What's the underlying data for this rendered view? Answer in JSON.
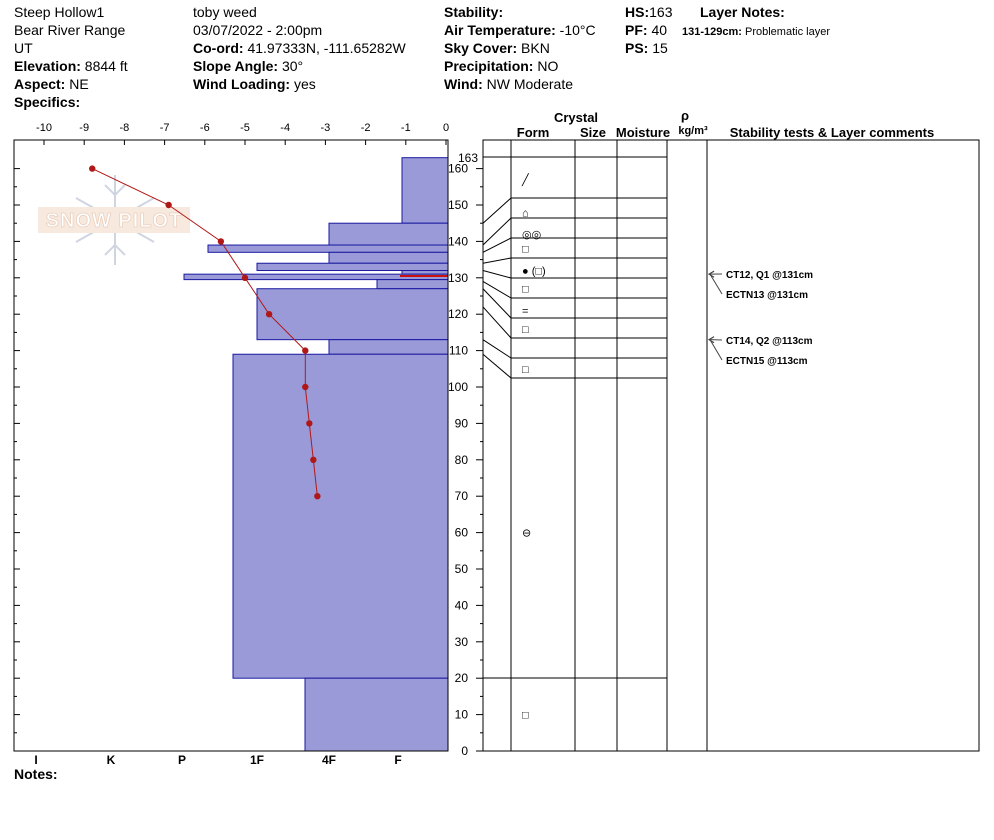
{
  "header": {
    "col1": [
      "Steep Hollow1",
      "Bear River Range",
      "UT"
    ],
    "elevation_label": "Elevation:",
    "elevation": "8844 ft",
    "aspect_label": "Aspect:",
    "aspect": "NE",
    "specifics_label": "Specifics:",
    "observer": "toby weed",
    "datetime": "03/07/2022 - 2:00pm",
    "coord_label": "Co-ord:",
    "coord": "41.97333N, -111.65282W",
    "slope_label": "Slope Angle:",
    "slope": "30°",
    "wind_loading_label": "Wind Loading:",
    "wind_loading": "yes",
    "stability_label": "Stability:",
    "stability": "",
    "air_temp_label": "Air Temperature:",
    "air_temp": "-10°C",
    "sky_label": "Sky Cover:",
    "sky": "BKN",
    "precip_label": "Precipitation:",
    "precip": "NO",
    "wind_label": "Wind:",
    "wind": "NW Moderate",
    "hs_label": "HS:",
    "hs": "163",
    "pf_label": "PF:",
    "pf": "40",
    "ps_label": "PS:",
    "ps": "15",
    "layer_notes_label": "Layer Notes:",
    "layer_note_range": "131-129cm:",
    "layer_note_text": "Problematic layer",
    "notes_label": "Notes:"
  },
  "watermark": "SNOW PILOT",
  "table_headers": {
    "crystal": "Crystal",
    "form": "Form",
    "size": "Size",
    "moisture": "Moisture",
    "rho": "ρ",
    "density_unit": "kg/m³",
    "stability": "Stability tests & Layer comments"
  },
  "chart_data": {
    "type": "snow-profile",
    "temp_axis": {
      "ticks": [
        "-10",
        "-9",
        "-8",
        "-7",
        "-6",
        "-5",
        "-4",
        "-3",
        "-2",
        "-1",
        "0"
      ],
      "range": [
        -10,
        0
      ]
    },
    "hardness_axis": {
      "labels": [
        "I",
        "K",
        "P",
        "1F",
        "4F",
        "F"
      ]
    },
    "height_axis": {
      "ticks": [
        "0",
        "10",
        "20",
        "30",
        "40",
        "50",
        "60",
        "70",
        "80",
        "90",
        "100",
        "110",
        "120",
        "130",
        "140",
        "150",
        "160"
      ],
      "top_label": "163",
      "range": [
        0,
        163
      ]
    },
    "temperature_profile": [
      {
        "height": 160,
        "temp": -8.8
      },
      {
        "height": 150,
        "temp": -6.9
      },
      {
        "height": 140,
        "temp": -5.6
      },
      {
        "height": 130,
        "temp": -5.0
      },
      {
        "height": 120,
        "temp": -4.4
      },
      {
        "height": 110,
        "temp": -3.5
      },
      {
        "height": 100,
        "temp": -3.5
      },
      {
        "height": 90,
        "temp": -3.4
      },
      {
        "height": 80,
        "temp": -3.3
      },
      {
        "height": 70,
        "temp": -3.2
      }
    ],
    "hardness_layers": [
      {
        "top": 163,
        "bottom": 145,
        "hardness_px": 46
      },
      {
        "top": 145,
        "bottom": 139,
        "hardness_px": 119
      },
      {
        "top": 139,
        "bottom": 137,
        "hardness_px": 240
      },
      {
        "top": 137,
        "bottom": 134,
        "hardness_px": 119
      },
      {
        "top": 134,
        "bottom": 132,
        "hardness_px": 191
      },
      {
        "top": 132,
        "bottom": 131,
        "hardness_px": 46
      },
      {
        "top": 131,
        "bottom": 129.5,
        "hardness_px": 264
      },
      {
        "top": 129.5,
        "bottom": 127,
        "hardness_px": 71
      },
      {
        "top": 127,
        "bottom": 113,
        "hardness_px": 191
      },
      {
        "top": 113,
        "bottom": 109,
        "hardness_px": 119
      },
      {
        "top": 109,
        "bottom": 20,
        "hardness_px": 215
      },
      {
        "top": 20,
        "bottom": 0,
        "hardness_px": 143
      }
    ],
    "layer_boundaries": [
      163,
      145,
      139,
      137,
      134,
      132,
      129,
      127,
      122,
      113,
      109,
      20,
      0
    ],
    "crystal_forms": [
      {
        "height": 157,
        "symbol": "╱"
      },
      {
        "height": 148,
        "symbol": "⌂"
      },
      {
        "height": 142,
        "symbol": "◎◎"
      },
      {
        "height": 138,
        "symbol": "□"
      },
      {
        "height": 132,
        "symbol": "● (□)"
      },
      {
        "height": 127,
        "symbol": "□"
      },
      {
        "height": 121,
        "symbol": "="
      },
      {
        "height": 116,
        "symbol": "□"
      },
      {
        "height": 105,
        "symbol": "□"
      },
      {
        "height": 60,
        "symbol": "⊖"
      },
      {
        "height": 10,
        "symbol": "□"
      }
    ],
    "stability_tests": [
      {
        "height": 131,
        "text": "CT12, Q1 @131cm"
      },
      {
        "height": 131,
        "text": "ECTN13 @131cm"
      },
      {
        "height": 113,
        "text": "CT14, Q2 @113cm"
      },
      {
        "height": 113,
        "text": "ECTN15 @113cm"
      }
    ],
    "colors": {
      "hardness_fill": "#9a9ad8",
      "hardness_stroke": "#1a1aa0",
      "temp_line": "#b01818",
      "problem_layer": "#cc1111"
    }
  }
}
